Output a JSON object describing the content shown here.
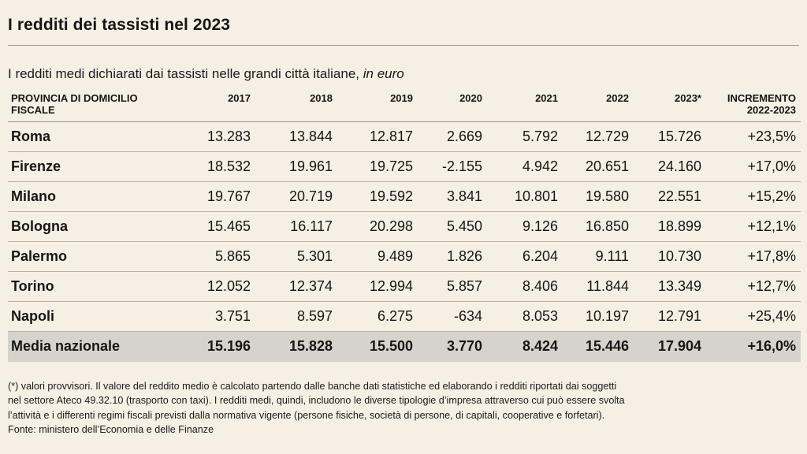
{
  "title": "I redditi dei tassisti nel 2023",
  "subtitle": {
    "text": "I redditi medi dichiarati dai tassisti nelle grandi città italiane,",
    "unit": "in euro"
  },
  "table": {
    "headers": [
      "PROVINCIA DI DOMICILIO FISCALE",
      "2017",
      "2018",
      "2019",
      "2020",
      "2021",
      "2022",
      "2023*",
      "INCREMENTO 2022-2023"
    ],
    "rows": [
      [
        "Roma",
        "13.283",
        "13.844",
        "12.817",
        "2.669",
        "5.792",
        "12.729",
        "15.726",
        "+23,5%"
      ],
      [
        "Firenze",
        "18.532",
        "19.961",
        "19.725",
        "-2.155",
        "4.942",
        "20.651",
        "24.160",
        "+17,0%"
      ],
      [
        "Milano",
        "19.767",
        "20.719",
        "19.592",
        "3.841",
        "10.801",
        "19.580",
        "22.551",
        "+15,2%"
      ],
      [
        "Bologna",
        "15.465",
        "16.117",
        "20.298",
        "5.450",
        "9.126",
        "16.850",
        "18.899",
        "+12,1%"
      ],
      [
        "Palermo",
        "5.865",
        "5.301",
        "9.489",
        "1.826",
        "6.204",
        "9.111",
        "10.730",
        "+17,8%"
      ],
      [
        "Torino",
        "12.052",
        "12.374",
        "12.994",
        "5.857",
        "8.406",
        "11.844",
        "13.349",
        "+12,7%"
      ],
      [
        "Napoli",
        "3.751",
        "8.597",
        "6.275",
        "-634",
        "8.053",
        "10.197",
        "12.791",
        "+25,4%"
      ]
    ],
    "average": [
      "Media nazionale",
      "15.196",
      "15.828",
      "15.500",
      "3.770",
      "8.424",
      "15.446",
      "17.904",
      "+16,0%"
    ]
  },
  "footnote": {
    "line1": "(*) valori provvisori. Il valore del reddito medio è calcolato partendo dalle banche dati statistiche ed elaborando i redditi riportati dai soggetti",
    "line2": "nel settore Ateco 49.32.10 (trasporto con taxi). I redditi medi, quindi, includono le diverse tipologie d’impresa attraverso cui può essere svolta",
    "line3": "l’attività e i differenti regimi fiscali previsti dalla normativa vigente (persone fisiche, società di persone, di capitali, cooperative e forfetari).",
    "source": "Fonte: ministero dell’Economia e delle Finanze"
  }
}
